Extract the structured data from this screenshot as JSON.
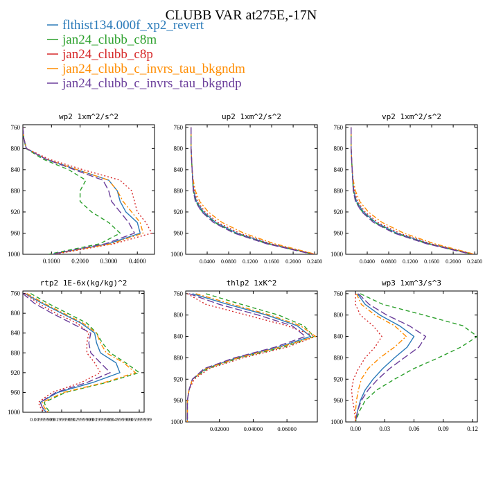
{
  "title": "CLUBB VAR at275E,-17N",
  "colors": {
    "flthist134.000f_xp2_revert": "#2a7ab9",
    "jan24_clubb_c8m": "#2ca02c",
    "jan24_clubb_c8p": "#d62728",
    "jan24_clubb_c_invrs_tau_bkgndm": "#ff8c00",
    "jan24_clubb_c_invrs_tau_bkgndp": "#6a3d9a"
  },
  "legend": [
    {
      "name": "flthist134.000f_xp2_revert",
      "dash": "solid"
    },
    {
      "name": "jan24_clubb_c8m",
      "dash": "dash"
    },
    {
      "name": "jan24_clubb_c8p",
      "dash": "dot"
    },
    {
      "name": "jan24_clubb_c_invrs_tau_bkgndm",
      "dash": "dashdot"
    },
    {
      "name": "jan24_clubb_c_invrs_tau_bkgndp",
      "dash": "longdash"
    }
  ],
  "chart_data": [
    {
      "type": "line",
      "title": "wp2  1xm^2/s^2",
      "xlim": [
        0,
        0.46
      ],
      "ylim": [
        1000,
        755
      ],
      "y_ticks": [
        760,
        800,
        840,
        880,
        920,
        960,
        1000
      ],
      "x_ticks": [
        "0.1000",
        "0.2000",
        "0.3000",
        "0.4000"
      ],
      "x_tick_values": [
        0.1,
        0.2,
        0.3,
        0.4
      ],
      "y": [
        760,
        780,
        800,
        820,
        840,
        860,
        880,
        900,
        920,
        940,
        960,
        980,
        1000
      ],
      "series": [
        {
          "name": "flthist134.000f_xp2_revert",
          "x": [
            0.0,
            0.003,
            0.012,
            0.08,
            0.19,
            0.3,
            0.33,
            0.34,
            0.36,
            0.4,
            0.41,
            0.3,
            0.1
          ]
        },
        {
          "name": "jan24_clubb_c8m",
          "x": [
            0.0,
            0.003,
            0.011,
            0.07,
            0.16,
            0.22,
            0.2,
            0.2,
            0.24,
            0.3,
            0.34,
            0.27,
            0.09
          ]
        },
        {
          "name": "jan24_clubb_c8p",
          "x": [
            0.0,
            0.003,
            0.013,
            0.09,
            0.21,
            0.34,
            0.38,
            0.39,
            0.4,
            0.43,
            0.45,
            0.32,
            0.11
          ]
        },
        {
          "name": "jan24_clubb_c_invrs_tau_bkgndm",
          "x": [
            0.0,
            0.003,
            0.012,
            0.08,
            0.19,
            0.3,
            0.33,
            0.35,
            0.38,
            0.41,
            0.42,
            0.31,
            0.1
          ]
        },
        {
          "name": "jan24_clubb_c_invrs_tau_bkgndp",
          "x": [
            0.0,
            0.003,
            0.012,
            0.08,
            0.18,
            0.28,
            0.3,
            0.31,
            0.34,
            0.37,
            0.39,
            0.29,
            0.1
          ]
        }
      ]
    },
    {
      "type": "line",
      "title": "up2  1xm^2/s^2",
      "xlim": [
        0,
        0.245
      ],
      "ylim": [
        1000,
        755
      ],
      "y_ticks": [
        760,
        800,
        840,
        880,
        920,
        960,
        1000
      ],
      "x_ticks": [
        "0.0400",
        "0.0800",
        "0.1200",
        "0.1600",
        "0.2000",
        "0.2400"
      ],
      "x_tick_values": [
        0.04,
        0.08,
        0.12,
        0.16,
        0.2,
        0.24
      ],
      "y": [
        760,
        780,
        800,
        820,
        840,
        860,
        880,
        900,
        920,
        940,
        960,
        980,
        1000
      ],
      "series": [
        {
          "name": "flthist134.000f_xp2_revert",
          "x": [
            0.01,
            0.01,
            0.01,
            0.011,
            0.012,
            0.013,
            0.015,
            0.02,
            0.033,
            0.056,
            0.095,
            0.155,
            0.24
          ]
        },
        {
          "name": "jan24_clubb_c8m",
          "x": [
            0.01,
            0.01,
            0.01,
            0.011,
            0.012,
            0.013,
            0.014,
            0.019,
            0.031,
            0.054,
            0.092,
            0.152,
            0.238
          ]
        },
        {
          "name": "jan24_clubb_c8p",
          "x": [
            0.01,
            0.01,
            0.01,
            0.011,
            0.012,
            0.014,
            0.016,
            0.022,
            0.036,
            0.06,
            0.1,
            0.158,
            0.24
          ]
        },
        {
          "name": "jan24_clubb_c_invrs_tau_bkgndm",
          "x": [
            0.01,
            0.01,
            0.01,
            0.011,
            0.012,
            0.014,
            0.018,
            0.026,
            0.042,
            0.068,
            0.108,
            0.165,
            0.242
          ]
        },
        {
          "name": "jan24_clubb_c_invrs_tau_bkgndp",
          "x": [
            0.01,
            0.01,
            0.01,
            0.011,
            0.012,
            0.013,
            0.014,
            0.018,
            0.03,
            0.052,
            0.09,
            0.15,
            0.236
          ]
        }
      ]
    },
    {
      "type": "line",
      "title": "vp2  1xm^2/s^2",
      "xlim": [
        0,
        0.245
      ],
      "ylim": [
        1000,
        755
      ],
      "y_ticks": [
        760,
        800,
        840,
        880,
        920,
        960,
        1000
      ],
      "x_ticks": [
        "0.0400",
        "0.0800",
        "0.1200",
        "0.1600",
        "0.2000",
        "0.2400"
      ],
      "x_tick_values": [
        0.04,
        0.08,
        0.12,
        0.16,
        0.2,
        0.24
      ],
      "y": [
        760,
        780,
        800,
        820,
        840,
        860,
        880,
        900,
        920,
        940,
        960,
        980,
        1000
      ],
      "series": [
        {
          "name": "flthist134.000f_xp2_revert",
          "x": [
            0.01,
            0.01,
            0.01,
            0.011,
            0.012,
            0.013,
            0.015,
            0.02,
            0.033,
            0.056,
            0.095,
            0.155,
            0.238
          ]
        },
        {
          "name": "jan24_clubb_c8m",
          "x": [
            0.01,
            0.01,
            0.01,
            0.011,
            0.012,
            0.013,
            0.014,
            0.019,
            0.031,
            0.054,
            0.092,
            0.152,
            0.236
          ]
        },
        {
          "name": "jan24_clubb_c8p",
          "x": [
            0.01,
            0.01,
            0.01,
            0.011,
            0.012,
            0.014,
            0.016,
            0.022,
            0.036,
            0.06,
            0.1,
            0.158,
            0.238
          ]
        },
        {
          "name": "jan24_clubb_c_invrs_tau_bkgndm",
          "x": [
            0.01,
            0.01,
            0.01,
            0.011,
            0.012,
            0.014,
            0.018,
            0.026,
            0.042,
            0.068,
            0.108,
            0.165,
            0.24
          ]
        },
        {
          "name": "jan24_clubb_c_invrs_tau_bkgndp",
          "x": [
            0.01,
            0.01,
            0.01,
            0.011,
            0.012,
            0.013,
            0.014,
            0.018,
            0.03,
            0.052,
            0.09,
            0.15,
            0.234
          ]
        }
      ]
    },
    {
      "type": "line",
      "title": "rtp2  1E-6x(kg/kg)^2",
      "xlim": [
        0,
        0.0625
      ],
      "ylim": [
        1000,
        755
      ],
      "y_ticks": [
        760,
        800,
        840,
        880,
        920,
        960,
        1000
      ],
      "x_ticks": [
        "0.00999999",
        "0.01999999",
        "0.02999999",
        "0.03999999",
        "0.04999999",
        "0.05999999"
      ],
      "x_tick_values": [
        0.01,
        0.02,
        0.03,
        0.04,
        0.05,
        0.06
      ],
      "y": [
        760,
        780,
        800,
        820,
        840,
        860,
        880,
        900,
        920,
        940,
        960,
        980,
        990,
        1000
      ],
      "series": [
        {
          "name": "flthist134.000f_xp2_revert",
          "x": [
            0.001,
            0.01,
            0.02,
            0.03,
            0.037,
            0.038,
            0.04,
            0.048,
            0.05,
            0.036,
            0.018,
            0.009,
            0.01,
            0.012
          ]
        },
        {
          "name": "jan24_clubb_c8m",
          "x": [
            0.004,
            0.013,
            0.023,
            0.033,
            0.038,
            0.041,
            0.045,
            0.053,
            0.06,
            0.043,
            0.022,
            0.011,
            0.012,
            0.014
          ]
        },
        {
          "name": "jan24_clubb_c8p",
          "x": [
            0.001,
            0.008,
            0.017,
            0.028,
            0.034,
            0.033,
            0.033,
            0.037,
            0.04,
            0.03,
            0.015,
            0.008,
            0.009,
            0.011
          ]
        },
        {
          "name": "jan24_clubb_c_invrs_tau_bkgndm",
          "x": [
            0.002,
            0.011,
            0.021,
            0.031,
            0.038,
            0.04,
            0.043,
            0.052,
            0.058,
            0.042,
            0.021,
            0.01,
            0.011,
            0.013
          ]
        },
        {
          "name": "jan24_clubb_c_invrs_tau_bkgndp",
          "x": [
            0.0,
            0.006,
            0.015,
            0.025,
            0.035,
            0.034,
            0.035,
            0.04,
            0.045,
            0.033,
            0.017,
            0.009,
            0.01,
            0.012
          ]
        }
      ]
    },
    {
      "type": "line",
      "title": "thlp2  1xK^2",
      "xlim": [
        0,
        0.078
      ],
      "ylim": [
        1000,
        755
      ],
      "y_ticks": [
        760,
        800,
        840,
        880,
        920,
        960,
        1000
      ],
      "x_ticks": [
        "0.02000",
        "0.04000",
        "0.06000"
      ],
      "x_tick_values": [
        0.02,
        0.04,
        0.06
      ],
      "y": [
        760,
        780,
        800,
        820,
        840,
        860,
        880,
        900,
        920,
        940,
        960,
        980,
        1000
      ],
      "series": [
        {
          "name": "flthist134.000f_xp2_revert",
          "x": [
            0.004,
            0.025,
            0.048,
            0.066,
            0.074,
            0.055,
            0.03,
            0.012,
            0.004,
            0.002,
            0.001,
            0.001,
            0.001
          ]
        },
        {
          "name": "jan24_clubb_c8m",
          "x": [
            0.012,
            0.033,
            0.055,
            0.07,
            0.076,
            0.058,
            0.032,
            0.013,
            0.004,
            0.002,
            0.001,
            0.001,
            0.001
          ]
        },
        {
          "name": "jan24_clubb_c8p",
          "x": [
            0.001,
            0.012,
            0.036,
            0.06,
            0.077,
            0.06,
            0.034,
            0.014,
            0.005,
            0.002,
            0.001,
            0.001,
            0.001
          ]
        },
        {
          "name": "jan24_clubb_c_invrs_tau_bkgndm",
          "x": [
            0.006,
            0.028,
            0.05,
            0.068,
            0.077,
            0.056,
            0.031,
            0.012,
            0.004,
            0.002,
            0.001,
            0.001,
            0.001
          ]
        },
        {
          "name": "jan24_clubb_c_invrs_tau_bkgndp",
          "x": [
            0.002,
            0.02,
            0.043,
            0.063,
            0.071,
            0.053,
            0.029,
            0.011,
            0.004,
            0.002,
            0.001,
            0.001,
            0.001
          ]
        }
      ]
    },
    {
      "type": "line",
      "title": "wp3  1xm^3/s^3",
      "xlim": [
        -0.01,
        0.125
      ],
      "ylim": [
        1000,
        755
      ],
      "y_ticks": [
        760,
        800,
        840,
        880,
        920,
        960,
        1000
      ],
      "x_ticks": [
        "0.00",
        "0.03",
        "0.06",
        "0.09",
        "0.12"
      ],
      "x_tick_values": [
        0.0,
        0.03,
        0.06,
        0.09,
        0.12
      ],
      "y": [
        760,
        780,
        800,
        820,
        840,
        860,
        880,
        900,
        920,
        940,
        960,
        980,
        1000
      ],
      "series": [
        {
          "name": "flthist134.000f_xp2_revert",
          "x": [
            0.002,
            0.01,
            0.025,
            0.045,
            0.06,
            0.053,
            0.04,
            0.028,
            0.018,
            0.01,
            0.005,
            0.002,
            0.0
          ]
        },
        {
          "name": "jan24_clubb_c8m",
          "x": [
            0.005,
            0.028,
            0.07,
            0.11,
            0.125,
            0.108,
            0.085,
            0.06,
            0.04,
            0.022,
            0.01,
            0.004,
            0.0
          ]
        },
        {
          "name": "jan24_clubb_c8p",
          "x": [
            0.0,
            0.0,
            0.005,
            0.018,
            0.027,
            0.02,
            0.01,
            0.003,
            -0.002,
            -0.004,
            -0.003,
            -0.001,
            0.0
          ]
        },
        {
          "name": "jan24_clubb_c_invrs_tau_bkgndm",
          "x": [
            0.001,
            0.006,
            0.02,
            0.04,
            0.052,
            0.04,
            0.025,
            0.013,
            0.006,
            0.003,
            0.001,
            0.0,
            0.0
          ]
        },
        {
          "name": "jan24_clubb_c_invrs_tau_bkgndp",
          "x": [
            0.003,
            0.014,
            0.032,
            0.055,
            0.072,
            0.065,
            0.05,
            0.035,
            0.023,
            0.013,
            0.006,
            0.002,
            0.0
          ]
        }
      ]
    }
  ]
}
